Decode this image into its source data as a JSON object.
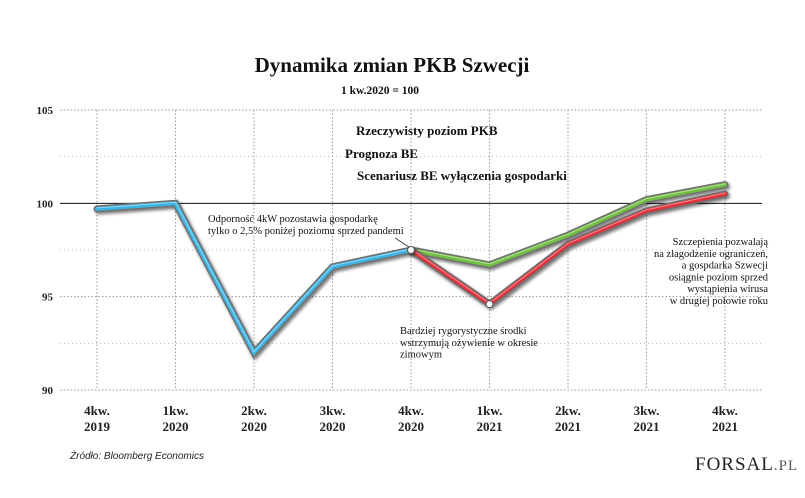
{
  "chart_data": {
    "type": "line",
    "title": "Dynamika zmian PKB Szwecji",
    "subtitle": "1 kw.2020 = 100",
    "categories": [
      [
        "4kw.",
        "2019"
      ],
      [
        "1kw.",
        "2020"
      ],
      [
        "2kw.",
        "2020"
      ],
      [
        "3kw.",
        "2020"
      ],
      [
        "4kw.",
        "2020"
      ],
      [
        "1kw.",
        "2021"
      ],
      [
        "2kw.",
        "2021"
      ],
      [
        "3kw.",
        "2021"
      ],
      [
        "4kw.",
        "2021"
      ]
    ],
    "ylim": [
      90,
      105
    ],
    "yticks": [
      90,
      95,
      100,
      105
    ],
    "reference_line": 100,
    "grid": true,
    "legend_position": "top-center",
    "series": [
      {
        "name": "Rzeczywisty poziom PKB",
        "color": "#3bb4e5",
        "values": [
          99.7,
          100,
          92.0,
          96.6,
          97.5,
          null,
          null,
          null,
          null
        ]
      },
      {
        "name": "Prognoza BE",
        "color": "#72c043",
        "values": [
          null,
          null,
          null,
          null,
          97.5,
          96.7,
          98.3,
          100.2,
          101.0
        ]
      },
      {
        "name": "Scenariusz BE wyłączenia gospodarki",
        "color": "#e0323b",
        "values": [
          null,
          null,
          null,
          null,
          97.5,
          94.6,
          97.8,
          99.6,
          100.5
        ]
      }
    ],
    "annotations": [
      {
        "lines": [
          "Odporność 4kW pozostawia gospodarkę",
          "tylko o 2,5% poniżej poziomu sprzed pandemi"
        ]
      },
      {
        "lines": [
          "Bardziej rygorystyczne środki",
          "wstrzymują ożywienie w okresie",
          "zimowym"
        ]
      },
      {
        "lines": [
          "Szczepienia pozwalają",
          "na złagodzenie ograniczeń,",
          "a gospdarka Szwecji",
          "osiągnie poziom sprzed",
          "wystąpienia wirusa",
          "w drugiej połowie roku"
        ]
      }
    ],
    "source": "Źródło: Bloomberg Economics"
  },
  "logo": {
    "text": "FORSAL",
    "suffix": ".PL"
  },
  "colors": {
    "grid": "#9a9a9a",
    "axis": "#222222"
  }
}
